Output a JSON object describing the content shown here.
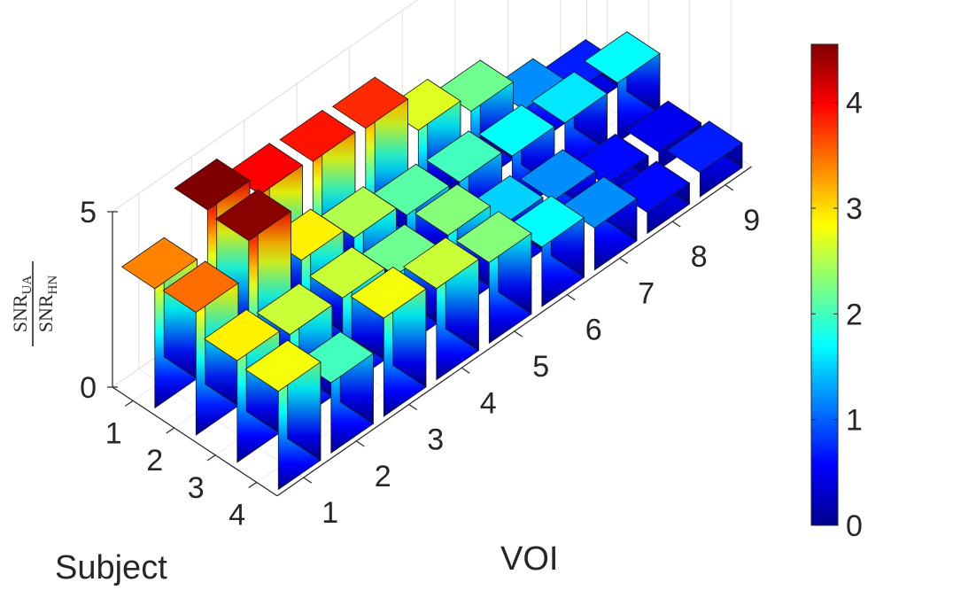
{
  "chart_data": {
    "type": "bar3d",
    "xlabel": "VOI",
    "ylabel": "Subject",
    "zlabel": {
      "base": "SNR",
      "num_sub": "UA",
      "den_sub": "HN"
    },
    "x_categories": [
      "1",
      "2",
      "3",
      "4",
      "5",
      "6",
      "7",
      "8",
      "9"
    ],
    "y_categories": [
      "1",
      "2",
      "3",
      "4"
    ],
    "z_ticks": [
      "0",
      "5"
    ],
    "zlim": [
      0,
      5
    ],
    "values": [
      [
        3.4,
        4.6,
        4.0,
        3.9,
        3.8,
        2.7,
        2.2,
        1.2,
        0.7
      ],
      [
        3.5,
        4.5,
        2.9,
        2.5,
        2.1,
        2.0,
        1.7,
        1.6,
        1.7
      ],
      [
        2.9,
        2.6,
        2.6,
        2.2,
        2.3,
        1.5,
        1.2,
        0.6,
        0.5
      ],
      [
        2.8,
        2.0,
        2.8,
        2.6,
        2.3,
        1.7,
        1.2,
        0.6,
        0.7
      ]
    ],
    "colorbar": {
      "colormap": "jet",
      "min": 0,
      "max": 4.55,
      "ticks": [
        "0",
        "1",
        "2",
        "3",
        "4"
      ]
    },
    "grid": true
  }
}
